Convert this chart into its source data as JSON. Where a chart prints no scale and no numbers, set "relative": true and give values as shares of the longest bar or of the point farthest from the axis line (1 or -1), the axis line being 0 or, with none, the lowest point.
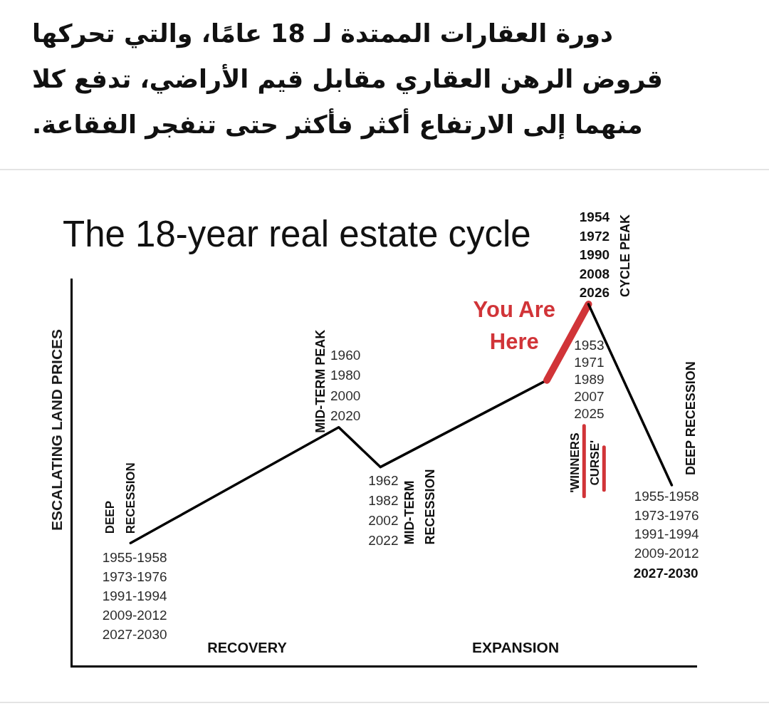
{
  "chart_data": {
    "type": "line",
    "title": "دورة العقارات الممتدة لـ 18 عامًا، والتي تحركها قروض الرهن العقاري مقابل قيم الأراضي، تدفع كلا منهما إلى الارتفاع أكثر فأكثر حتى تنفجر الفقاعة.",
    "subtitle": "The 18-year real estate cycle",
    "ylabel": "ESCALATING LAND PRICES",
    "relative": true,
    "categories": [
      null,
      null,
      null,
      null,
      null,
      null,
      null,
      null,
      null,
      null,
      null,
      null,
      null,
      null
    ],
    "series": [
      {
        "color": "#000000",
        "values": [
          0.34,
          0.404,
          0.468,
          0.532,
          0.596,
          0.66,
          0.55,
          0.61,
          0.67,
          0.73,
          0.79,
          null,
          null,
          null
        ]
      },
      {
        "name": "You Are Here",
        "color": "#d13438",
        "values": [
          null,
          null,
          null,
          null,
          null,
          null,
          null,
          null,
          null,
          null,
          0.79,
          1,
          null,
          null
        ]
      },
      {
        "color": "#000000",
        "values": [
          null,
          null,
          null,
          null,
          null,
          null,
          null,
          null,
          null,
          null,
          null,
          1,
          0.75,
          0.5
        ]
      }
    ],
    "annotations": [
      "DEEP\nRECESSION",
      "1955-1958\n1973-1976\n1991-1994\n2009-2012\n2027-2030",
      "MID-TERM PEAK",
      "1960\n1980\n2000\n2020",
      "1962\n1982\n2002\n2022",
      "MID-TERM\nRECESSION",
      "1953\n1971\n1989\n2007\n2025",
      "'WINNERS\nCURSE'",
      "1954\n1972\n1990\n2008\n2026",
      "CYCLE PEAK",
      "DEEP RECESSION",
      "1955-1958\n1973-1976\n1991-1994\n2009-2012",
      "2027-2030",
      "RECOVERY",
      "EXPANSION"
    ]
  }
}
